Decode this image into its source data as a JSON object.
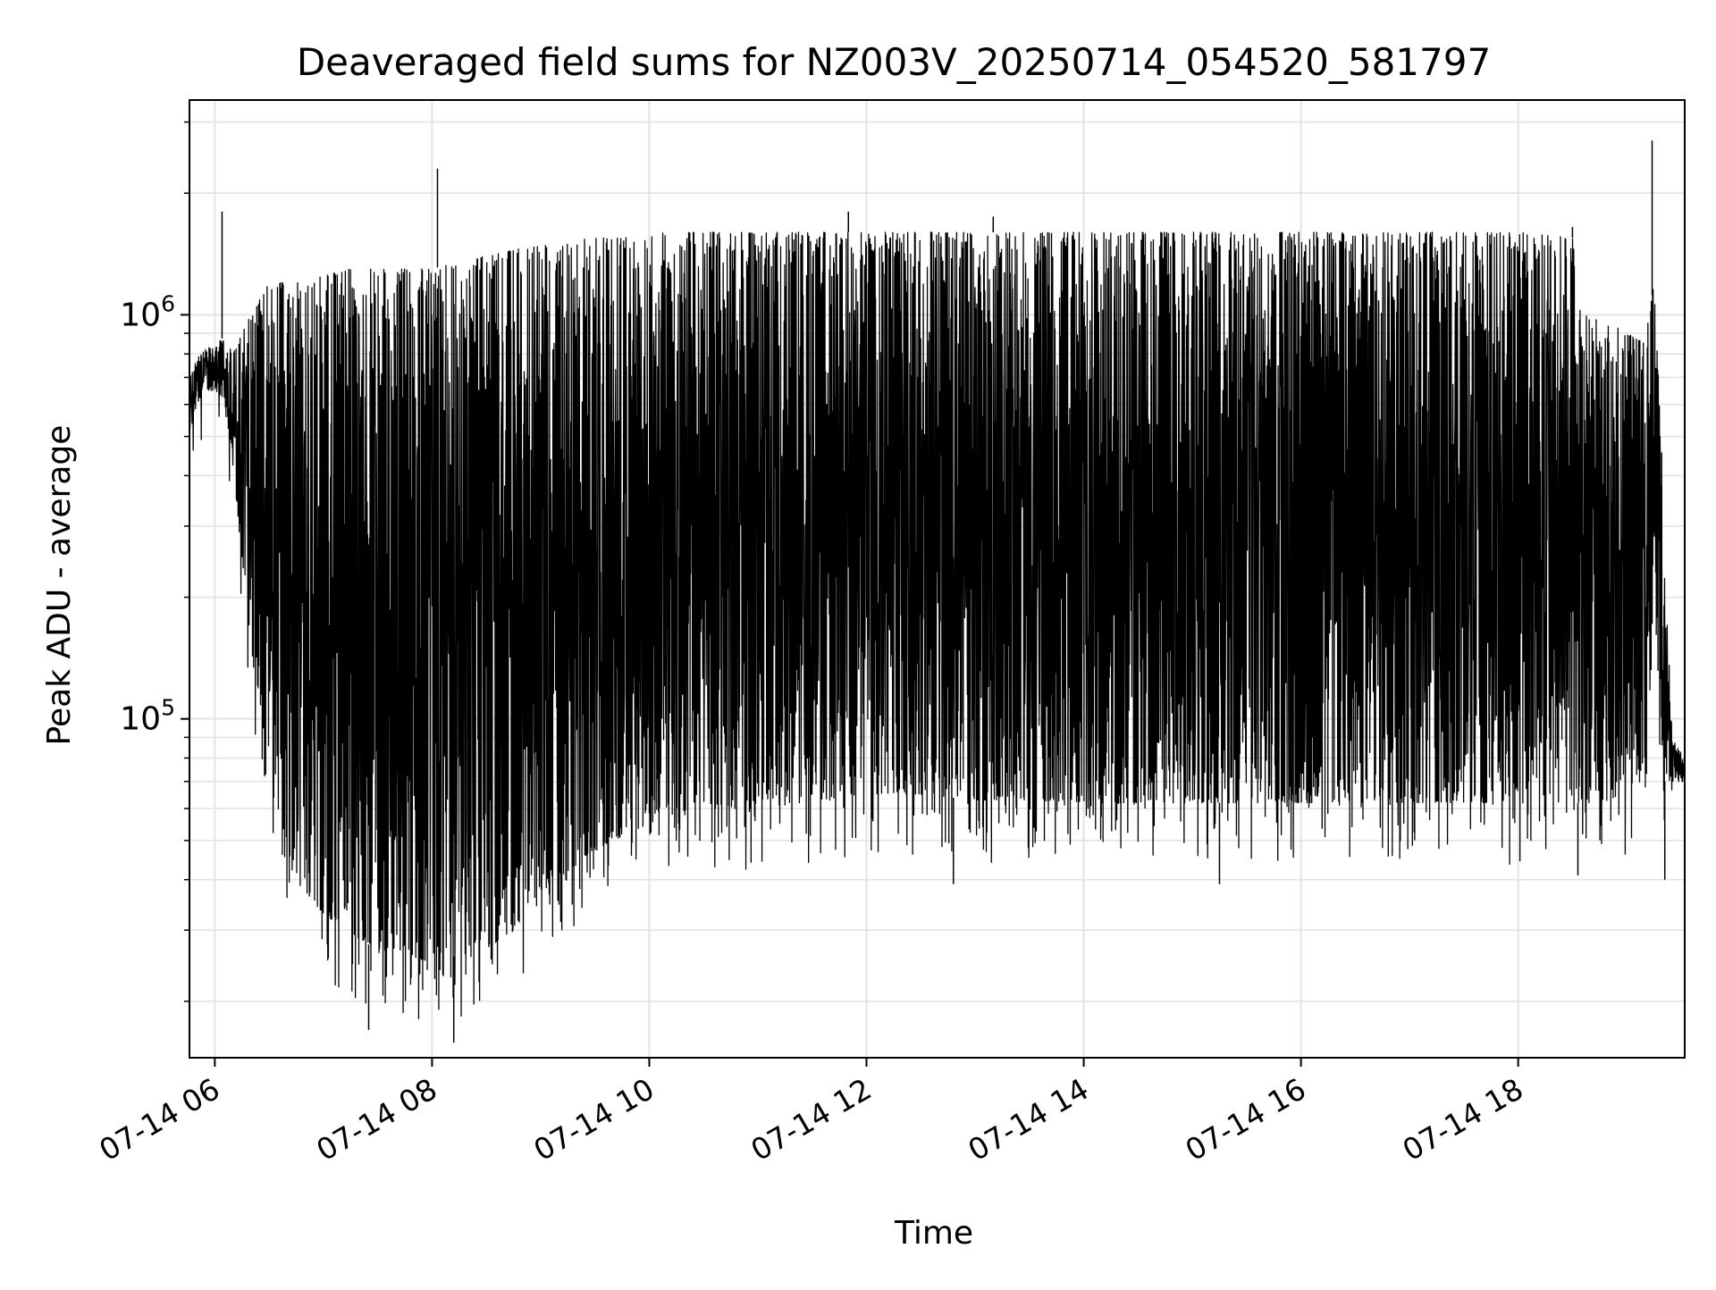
{
  "chart_data": {
    "type": "line",
    "title": "Deaveraged field sums for NZ003V_20250714_054520_581797",
    "xlabel": "Time",
    "ylabel": "Peak ADU - average",
    "yscale": "log",
    "ylim": [
      14500,
      3400000
    ],
    "xlim": [
      "2025-07-14T05:46",
      "2025-07-14T19:32"
    ],
    "x_ticks": [
      "2025-07-14T06:00",
      "2025-07-14T08:00",
      "2025-07-14T10:00",
      "2025-07-14T12:00",
      "2025-07-14T14:00",
      "2025-07-14T16:00",
      "2025-07-14T18:00"
    ],
    "x_tick_labels": [
      "07-14 06",
      "07-14 08",
      "07-14 10",
      "07-14 12",
      "07-14 14",
      "07-14 16",
      "07-14 18"
    ],
    "y_tick_labels": [
      {
        "value": 100000,
        "base": "10",
        "exp": "5"
      },
      {
        "value": 1000000,
        "base": "10",
        "exp": "6"
      }
    ],
    "grid": true,
    "line_color": "#000000",
    "series": [
      {
        "x": [
          "2025-07-14T05:46",
          "2025-07-14T05:50",
          "2025-07-14T05:55",
          "2025-07-14T06:00",
          "2025-07-14T06:05",
          "2025-07-14T06:10",
          "2025-07-14T06:15",
          "2025-07-14T06:20",
          "2025-07-14T06:25",
          "2025-07-14T06:30",
          "2025-07-14T06:35",
          "2025-07-14T06:40",
          "2025-07-14T06:45",
          "2025-07-14T06:50",
          "2025-07-14T07:00",
          "2025-07-14T07:15",
          "2025-07-14T07:30",
          "2025-07-14T07:45",
          "2025-07-14T08:00",
          "2025-07-14T08:15",
          "2025-07-14T08:30",
          "2025-07-14T08:45",
          "2025-07-14T09:00",
          "2025-07-14T09:15",
          "2025-07-14T09:30",
          "2025-07-14T09:45",
          "2025-07-14T10:00",
          "2025-07-14T10:30",
          "2025-07-14T11:00",
          "2025-07-14T11:30",
          "2025-07-14T12:00",
          "2025-07-14T12:30",
          "2025-07-14T13:00",
          "2025-07-14T13:30",
          "2025-07-14T14:00",
          "2025-07-14T14:30",
          "2025-07-14T15:00",
          "2025-07-14T15:30",
          "2025-07-14T16:00",
          "2025-07-14T16:30",
          "2025-07-14T17:00",
          "2025-07-14T17:30",
          "2025-07-14T18:00",
          "2025-07-14T18:30",
          "2025-07-14T18:35",
          "2025-07-14T18:45",
          "2025-07-14T19:00",
          "2025-07-14T19:10",
          "2025-07-14T19:15",
          "2025-07-14T19:20",
          "2025-07-14T19:25",
          "2025-07-14T19:32"
        ],
        "low": [
          500000,
          600000,
          650000,
          650000,
          620000,
          400000,
          250000,
          150000,
          110000,
          80000,
          60000,
          45000,
          40000,
          37000,
          33000,
          29000,
          27000,
          26000,
          25000,
          26000,
          27000,
          30000,
          37000,
          42000,
          47000,
          52000,
          58000,
          60000,
          60000,
          62000,
          65000,
          65000,
          63000,
          63000,
          62000,
          62000,
          62000,
          62000,
          62000,
          62000,
          62000,
          62000,
          62000,
          62000,
          62000,
          62000,
          65000,
          80000,
          200000,
          70000,
          70000,
          70000
        ],
        "high": [
          700000,
          780000,
          820000,
          850000,
          880000,
          800000,
          900000,
          1000000,
          1100000,
          1200000,
          1200000,
          1200000,
          1200000,
          1200000,
          1250000,
          1300000,
          1300000,
          1300000,
          1300000,
          1350000,
          1400000,
          1450000,
          1480000,
          1520000,
          1550000,
          1580000,
          1600000,
          1600000,
          1600000,
          1600000,
          1600000,
          1600000,
          1600000,
          1600000,
          1600000,
          1600000,
          1600000,
          1600000,
          1600000,
          1600000,
          1600000,
          1600000,
          1600000,
          1550000,
          1000000,
          1000000,
          900000,
          850000,
          1200000,
          400000,
          90000,
          80000
        ]
      }
    ],
    "spikes": [
      {
        "x": "2025-07-14T06:04",
        "y": 1800000
      },
      {
        "x": "2025-07-14T08:03",
        "y": 2300000
      },
      {
        "x": "2025-07-14T11:50",
        "y": 1800000
      },
      {
        "x": "2025-07-14T13:10",
        "y": 1750000
      },
      {
        "x": "2025-07-14T18:30",
        "y": 1650000
      },
      {
        "x": "2025-07-14T19:14",
        "y": 2700000
      }
    ],
    "dips": [
      {
        "x": "2025-07-14T08:12",
        "y": 15800
      },
      {
        "x": "2025-07-14T07:25",
        "y": 17000
      },
      {
        "x": "2025-07-14T12:48",
        "y": 39000
      },
      {
        "x": "2025-07-14T15:15",
        "y": 39000
      },
      {
        "x": "2025-07-14T18:33",
        "y": 41000
      },
      {
        "x": "2025-07-14T19:21",
        "y": 40000
      }
    ]
  }
}
